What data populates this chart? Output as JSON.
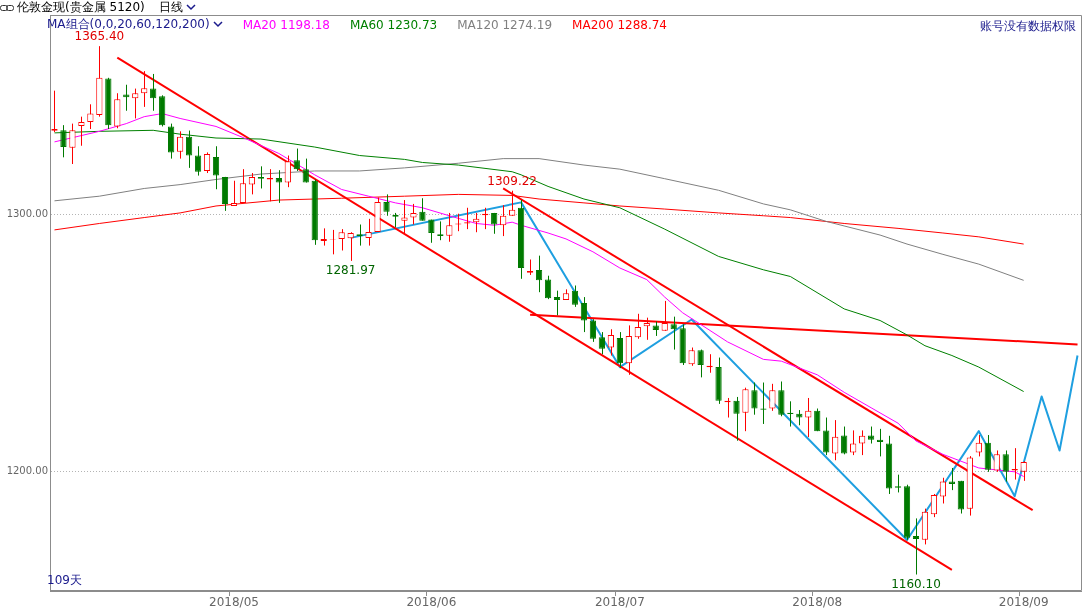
{
  "chart_data": {
    "type": "candlestick",
    "title": "伦敦金现(贵金属 5120)",
    "subtitle": "日线",
    "legend_title": "MA组合(0,0,20,60,120,200)",
    "legend": "top left",
    "grid": "y",
    "categories": [
      null,
      null,
      null,
      null,
      null,
      null,
      null,
      null,
      null,
      null,
      null,
      null,
      null,
      null,
      null,
      null,
      null,
      null,
      null,
      null,
      "2018/05",
      null,
      null,
      null,
      null,
      null,
      null,
      null,
      null,
      null,
      null,
      null,
      null,
      null,
      null,
      null,
      null,
      null,
      null,
      null,
      null,
      null,
      "2018/06",
      null,
      null,
      null,
      null,
      null,
      null,
      null,
      null,
      null,
      null,
      null,
      null,
      null,
      null,
      null,
      null,
      null,
      null,
      null,
      null,
      "2018/07",
      null,
      null,
      null,
      null,
      null,
      null,
      null,
      null,
      null,
      null,
      null,
      null,
      null,
      null,
      null,
      null,
      null,
      null,
      null,
      null,
      null,
      "2018/08",
      null,
      null,
      null,
      null,
      null,
      null,
      null,
      null,
      null,
      null,
      null,
      null,
      null,
      null,
      null,
      null,
      null,
      null,
      null,
      null,
      null,
      null,
      "2018/09",
      null,
      null,
      null,
      null,
      null,
      null
    ],
    "ylim": [
      1153.7,
      1377.5
    ],
    "yticks": [
      {
        "value": 1200,
        "label": "1200.00"
      },
      {
        "value": 1300,
        "label": "1300.00"
      }
    ],
    "ohlc": [
      [
        1332.5,
        1348.1,
        1332.0,
        1333.2
      ],
      [
        1332.7,
        1334.7,
        1322.2,
        1326.2
      ],
      [
        1325.9,
        1335.3,
        1319.6,
        1332.7
      ],
      [
        1334.4,
        1338.0,
        1326.7,
        1335.9
      ],
      [
        1335.9,
        1342.8,
        1333.2,
        1339.2
      ],
      [
        1338.6,
        1365.4,
        1338.0,
        1353.1
      ],
      [
        1352.8,
        1353.1,
        1333.2,
        1334.7
      ],
      [
        1334.2,
        1347.1,
        1333.5,
        1344.8
      ],
      [
        1346.6,
        1350.4,
        1340.3,
        1345.5
      ],
      [
        1345.2,
        1348.9,
        1337.3,
        1347.1
      ],
      [
        1347.1,
        1355.7,
        1341.8,
        1349.0
      ],
      [
        1348.9,
        1354.6,
        1340.3,
        1345.2
      ],
      [
        1345.9,
        1346.3,
        1334.2,
        1334.7
      ],
      [
        1334.2,
        1335.3,
        1321.7,
        1324.1
      ],
      [
        1324.4,
        1332.3,
        1321.7,
        1330.2
      ],
      [
        1330.2,
        1332.6,
        1318.1,
        1322.9
      ],
      [
        1322.9,
        1326.5,
        1315.1,
        1316.6
      ],
      [
        1316.9,
        1324.1,
        1316.1,
        1323.5
      ],
      [
        1322.3,
        1326.5,
        1309.8,
        1315.1
      ],
      [
        1314.6,
        1314.6,
        1301.4,
        1304.1
      ],
      [
        1303.3,
        1313.1,
        1303.3,
        1304.5
      ],
      [
        1304.5,
        1317.6,
        1304.5,
        1312.1
      ],
      [
        1311.6,
        1316.1,
        1307.8,
        1314.6
      ],
      [
        1314.6,
        1318.7,
        1310.1,
        1313.9
      ],
      [
        1313.6,
        1317.6,
        1305.1,
        1314.2
      ],
      [
        1314.2,
        1317.2,
        1304.5,
        1312.4
      ],
      [
        1312.4,
        1322.9,
        1310.6,
        1320.7
      ],
      [
        1321.1,
        1325.6,
        1316.9,
        1317.6
      ],
      [
        1317.6,
        1321.7,
        1312.4,
        1312.4
      ],
      [
        1313.1,
        1313.6,
        1288.2,
        1290.0
      ],
      [
        1289.7,
        1294.6,
        1287.9,
        1290.5
      ],
      [
        1290.3,
        1294.0,
        1284.5,
        1290.5
      ],
      [
        1290.5,
        1294.3,
        1286.0,
        1293.1
      ],
      [
        1290.8,
        1293.1,
        1281.97,
        1292.8
      ],
      [
        1292.3,
        1296.1,
        1287.9,
        1291.6
      ],
      [
        1290.9,
        1298.3,
        1287.9,
        1293.2
      ],
      [
        1293.2,
        1306.6,
        1293.2,
        1304.8
      ],
      [
        1304.8,
        1307.8,
        1299.5,
        1301.1
      ],
      [
        1299.8,
        1300.6,
        1295.0,
        1299.1
      ],
      [
        1297.6,
        1305.6,
        1292.8,
        1298.8
      ],
      [
        1298.8,
        1304.1,
        1296.1,
        1300.6
      ],
      [
        1301.1,
        1306.3,
        1297.6,
        1297.6
      ],
      [
        1298.0,
        1298.0,
        1289.0,
        1292.8
      ],
      [
        1292.3,
        1297.3,
        1290.0,
        1291.6
      ],
      [
        1291.7,
        1300.6,
        1289.4,
        1295.8
      ],
      [
        1296.1,
        1300.3,
        1293.5,
        1296.5
      ],
      [
        1296.5,
        1302.6,
        1294.3,
        1297.0
      ],
      [
        1297.0,
        1300.6,
        1293.1,
        1298.3
      ],
      [
        1299.7,
        1302.6,
        1294.3,
        1300.3
      ],
      [
        1300.6,
        1300.6,
        1292.5,
        1296.1
      ],
      [
        1295.8,
        1303.6,
        1291.6,
        1299.5
      ],
      [
        1299.5,
        1309.22,
        1299.5,
        1301.8
      ],
      [
        1302.6,
        1305.6,
        1275.0,
        1279.2
      ],
      [
        1277.4,
        1282.5,
        1276.5,
        1278.0
      ],
      [
        1278.4,
        1284.0,
        1269.8,
        1274.4
      ],
      [
        1274.7,
        1276.2,
        1267.1,
        1267.4
      ],
      [
        1267.9,
        1270.4,
        1260.8,
        1266.8
      ],
      [
        1266.8,
        1270.9,
        1266.8,
        1269.4
      ],
      [
        1270.4,
        1272.4,
        1264.1,
        1264.9
      ],
      [
        1265.6,
        1267.9,
        1254.3,
        1258.8
      ],
      [
        1258.8,
        1259.3,
        1250.5,
        1251.7
      ],
      [
        1252.3,
        1254.3,
        1245.7,
        1247.8
      ],
      [
        1248.3,
        1255.4,
        1245.2,
        1253.2
      ],
      [
        1252.0,
        1254.3,
        1240.3,
        1242.2
      ],
      [
        1242.2,
        1256.9,
        1237.7,
        1252.8
      ],
      [
        1252.3,
        1261.4,
        1251.7,
        1256.3
      ],
      [
        1256.6,
        1259.9,
        1251.3,
        1257.8
      ],
      [
        1256.9,
        1258.4,
        1252.8,
        1255.1
      ],
      [
        1254.8,
        1266.4,
        1254.8,
        1257.8
      ],
      [
        1257.3,
        1260.3,
        1247.5,
        1255.4
      ],
      [
        1255.8,
        1257.3,
        1241.5,
        1242.2
      ],
      [
        1241.8,
        1248.3,
        1241.2,
        1247.2
      ],
      [
        1247.2,
        1247.5,
        1236.7,
        1241.5
      ],
      [
        1240.6,
        1245.7,
        1238.5,
        1241.2
      ],
      [
        1240.7,
        1244.4,
        1226.4,
        1227.6
      ],
      [
        1227.0,
        1228.7,
        1221.1,
        1227.6
      ],
      [
        1227.6,
        1229.1,
        1212.1,
        1222.6
      ],
      [
        1223.0,
        1232.7,
        1215.8,
        1232.1
      ],
      [
        1231.7,
        1234.7,
        1222.2,
        1224.6
      ],
      [
        1224.6,
        1234.7,
        1218.6,
        1224.1
      ],
      [
        1224.6,
        1234.2,
        1223.7,
        1231.7
      ],
      [
        1231.7,
        1235.1,
        1221.6,
        1222.2
      ],
      [
        1223.0,
        1227.4,
        1217.6,
        1222.5
      ],
      [
        1222.6,
        1224.0,
        1218.1,
        1221.1
      ],
      [
        1221.1,
        1228.7,
        1213.5,
        1223.7
      ],
      [
        1223.7,
        1224.6,
        1215.8,
        1215.8
      ],
      [
        1216.1,
        1221.1,
        1206.5,
        1207.5
      ],
      [
        1207.1,
        1220.1,
        1204.5,
        1213.6
      ],
      [
        1214.1,
        1217.6,
        1206.8,
        1207.1
      ],
      [
        1207.5,
        1216.1,
        1206.5,
        1211.0
      ],
      [
        1211.0,
        1216.1,
        1206.5,
        1214.0
      ],
      [
        1214.1,
        1217.6,
        1211.0,
        1212.5
      ],
      [
        1212.5,
        1216.7,
        1206.0,
        1211.6
      ],
      [
        1211.0,
        1214.0,
        1191.4,
        1193.5
      ],
      [
        1194.4,
        1198.9,
        1192.0,
        1193.8
      ],
      [
        1194.4,
        1195.0,
        1173.6,
        1174.4
      ],
      [
        1175.1,
        1181.9,
        1160.1,
        1173.9
      ],
      [
        1173.6,
        1185.7,
        1171.8,
        1184.5
      ],
      [
        1183.5,
        1191.4,
        1182.4,
        1191.0
      ],
      [
        1190.4,
        1197.7,
        1187.7,
        1196.2
      ],
      [
        1196.2,
        1201.5,
        1192.9,
        1195.3
      ],
      [
        1196.5,
        1196.5,
        1183.8,
        1185.4
      ],
      [
        1185.7,
        1206.1,
        1183.0,
        1205.6
      ],
      [
        1207.5,
        1214.3,
        1206.0,
        1211.3
      ],
      [
        1211.3,
        1214.3,
        1200.0,
        1200.8
      ],
      [
        1200.5,
        1208.3,
        1200.0,
        1206.8
      ],
      [
        1206.8,
        1208.3,
        1196.2,
        1200.0
      ],
      [
        1200.5,
        1209.2,
        1197.0,
        1201.1
      ],
      [
        1200.0,
        1204.1,
        1196.5,
        1203.8
      ],
      null,
      null,
      null,
      null,
      null,
      null
    ],
    "series": [
      {
        "type": "line",
        "name": "MA20 1198.18",
        "color": "#ff00ff",
        "values": [
          1328.2,
          null,
          null,
          null,
          null,
          1332.3,
          null,
          null,
          1335.3,
          null,
          1338.0,
          null,
          1339.2,
          null,
          1337.3,
          null,
          null,
          null,
          1334.2,
          null,
          null,
          1329.9,
          null,
          null,
          null,
          1323.7,
          null,
          null,
          null,
          1315.4,
          null,
          null,
          1309.7,
          null,
          null,
          1307.1,
          null,
          null,
          1304.5,
          null,
          null,
          1302.6,
          null,
          null,
          1299.5,
          null,
          null,
          1296.5,
          null,
          1295.8,
          null,
          1297.0,
          1295.8,
          null,
          null,
          1292.8,
          null,
          1290.5,
          null,
          null,
          1285.5,
          null,
          null,
          1279.2,
          null,
          null,
          1274.7,
          null,
          1267.9,
          null,
          1261.8,
          null,
          1257.3,
          null,
          null,
          1250.5,
          null,
          null,
          null,
          1243.7,
          null,
          1243.0,
          null,
          null,
          null,
          1237.7,
          null,
          null,
          1230.9,
          null,
          null,
          1224.9,
          null,
          null,
          1218.9,
          null,
          1212.0,
          null,
          null,
          1206.8,
          null,
          null,
          null,
          1201.5,
          null,
          null,
          null,
          1200.0,
          1198.2,
          null,
          null,
          null,
          null,
          null,
          null
        ]
      },
      {
        "type": "line",
        "name": "MA60 1230.73",
        "color": "#008000",
        "values": [
          1331.7,
          null,
          null,
          null,
          null,
          1332.3,
          null,
          null,
          null,
          null,
          null,
          1332.7,
          null,
          null,
          1331.2,
          null,
          null,
          null,
          1329.7,
          null,
          null,
          null,
          null,
          1329.3,
          null,
          null,
          null,
          null,
          null,
          1326.2,
          null,
          null,
          null,
          null,
          1322.9,
          null,
          null,
          null,
          null,
          1321.4,
          null,
          1320.2,
          null,
          null,
          null,
          1319.2,
          null,
          null,
          null,
          null,
          null,
          1316.6,
          1315.4,
          null,
          null,
          1310.9,
          null,
          null,
          null,
          1306.0,
          null,
          null,
          null,
          1302.6,
          null,
          null,
          null,
          null,
          1294.3,
          null,
          null,
          null,
          null,
          null,
          1283.7,
          null,
          null,
          null,
          null,
          1278.5,
          null,
          null,
          1275.9,
          null,
          null,
          null,
          null,
          null,
          1263.3,
          null,
          null,
          null,
          1258.8,
          null,
          null,
          1253.2,
          null,
          1249.0,
          null,
          null,
          1245.2,
          null,
          null,
          1240.7,
          null,
          null,
          null,
          null,
          1231.2,
          null,
          null,
          null,
          null,
          null,
          null
        ]
      },
      {
        "type": "line",
        "name": "MA120 1274.19",
        "color": "#808080",
        "values": [
          1305.3,
          null,
          null,
          null,
          null,
          1307.1,
          null,
          null,
          null,
          null,
          1310.1,
          null,
          null,
          null,
          1311.6,
          null,
          null,
          null,
          1313.6,
          null,
          null,
          null,
          null,
          1315.7,
          null,
          null,
          null,
          null,
          null,
          1316.9,
          null,
          null,
          null,
          null,
          1316.9,
          null,
          null,
          null,
          null,
          1318.1,
          null,
          null,
          null,
          null,
          null,
          1319.9,
          null,
          null,
          null,
          null,
          1321.7,
          null,
          null,
          null,
          1321.7,
          null,
          null,
          null,
          null,
          1319.2,
          null,
          null,
          null,
          1317.6,
          null,
          null,
          null,
          null,
          1313.9,
          null,
          null,
          null,
          null,
          null,
          1309.4,
          null,
          null,
          null,
          null,
          1304.1,
          null,
          null,
          1301.8,
          null,
          null,
          null,
          1297.3,
          null,
          null,
          null,
          null,
          null,
          1292.0,
          null,
          null,
          1288.5,
          null,
          null,
          null,
          1284.5,
          null,
          null,
          null,
          1280.7,
          null,
          null,
          null,
          null,
          1274.4,
          null,
          null,
          null,
          null,
          null,
          null
        ]
      },
      {
        "type": "line",
        "name": "MA200 1288.74",
        "color": "#ff0000",
        "values": [
          1294.0,
          null,
          null,
          null,
          null,
          1296.5,
          null,
          null,
          null,
          null,
          1298.8,
          null,
          null,
          null,
          1300.6,
          null,
          null,
          null,
          1303.3,
          null,
          null,
          null,
          null,
          null,
          null,
          1305.6,
          null,
          null,
          null,
          null,
          null,
          null,
          1306.3,
          null,
          null,
          null,
          null,
          null,
          null,
          1307.1,
          null,
          null,
          null,
          null,
          null,
          1307.8,
          null,
          null,
          null,
          null,
          null,
          1307.4,
          null,
          null,
          1306.0,
          null,
          null,
          null,
          null,
          1304.5,
          null,
          null,
          null,
          1303.3,
          null,
          null,
          null,
          null,
          1302.1,
          null,
          null,
          null,
          null,
          null,
          1300.6,
          null,
          null,
          null,
          null,
          1299.5,
          null,
          null,
          1298.8,
          null,
          null,
          null,
          null,
          null,
          1296.5,
          null,
          null,
          null,
          null,
          null,
          1294.6,
          null,
          null,
          null,
          null,
          1292.8,
          null,
          null,
          null,
          1291.3,
          null,
          null,
          null,
          null,
          1288.5,
          null,
          null,
          null,
          null,
          null,
          null
        ]
      },
      {
        "type": "line",
        "color": "#ff0000",
        "values": [
          null,
          null,
          null,
          null,
          null,
          null,
          null,
          1360.9,
          null,
          null,
          null,
          null,
          null,
          null,
          null,
          null,
          null,
          null,
          null,
          null,
          null,
          null,
          null,
          null,
          null,
          null,
          null,
          null,
          null,
          null,
          null,
          null,
          null,
          null,
          null,
          null,
          null,
          null,
          null,
          null,
          null,
          null,
          null,
          null,
          null,
          null,
          null,
          null,
          null,
          null,
          null,
          null,
          null,
          null,
          null,
          null,
          null,
          null,
          null,
          null,
          null,
          null,
          null,
          null,
          null,
          null,
          null,
          null,
          null,
          null,
          null,
          null,
          null,
          null,
          null,
          null,
          null,
          null,
          null,
          null,
          null,
          null,
          null,
          null,
          null,
          null,
          null,
          null,
          null,
          null,
          null,
          null,
          null,
          null,
          null,
          null,
          null,
          null,
          null,
          null,
          1161.9,
          null,
          null,
          null,
          null,
          null,
          null,
          null,
          null,
          null,
          null,
          null,
          null,
          null,
          null
        ]
      },
      {
        "type": "line",
        "color": "#ff0000",
        "values": [
          null,
          null,
          null,
          null,
          null,
          null,
          null,
          null,
          null,
          null,
          null,
          null,
          null,
          null,
          null,
          null,
          null,
          null,
          null,
          null,
          null,
          null,
          null,
          null,
          null,
          null,
          null,
          null,
          null,
          null,
          null,
          null,
          null,
          null,
          null,
          null,
          null,
          null,
          null,
          null,
          null,
          null,
          null,
          null,
          null,
          null,
          null,
          null,
          null,
          null,
          1310.1,
          null,
          null,
          null,
          null,
          null,
          null,
          null,
          null,
          null,
          null,
          null,
          null,
          null,
          null,
          null,
          null,
          null,
          null,
          null,
          null,
          null,
          null,
          null,
          null,
          null,
          null,
          null,
          null,
          null,
          null,
          null,
          null,
          null,
          null,
          null,
          null,
          null,
          null,
          null,
          null,
          null,
          null,
          null,
          null,
          null,
          null,
          null,
          null,
          null,
          null,
          null,
          null,
          null,
          null,
          null,
          null,
          null,
          null,
          1185.1,
          null,
          null,
          null,
          null,
          null
        ]
      },
      {
        "type": "line",
        "color": "#ff0000",
        "values": [
          null,
          null,
          null,
          null,
          null,
          null,
          null,
          null,
          null,
          null,
          null,
          null,
          null,
          null,
          null,
          null,
          null,
          null,
          null,
          null,
          null,
          null,
          null,
          null,
          null,
          null,
          null,
          null,
          null,
          null,
          null,
          null,
          null,
          null,
          null,
          null,
          null,
          null,
          null,
          null,
          null,
          null,
          null,
          null,
          null,
          null,
          null,
          null,
          null,
          null,
          null,
          null,
          null,
          1261.0,
          null,
          null,
          null,
          null,
          null,
          null,
          null,
          null,
          null,
          null,
          null,
          null,
          null,
          null,
          null,
          null,
          null,
          null,
          null,
          null,
          null,
          null,
          null,
          null,
          null,
          null,
          null,
          null,
          null,
          null,
          null,
          null,
          null,
          null,
          null,
          null,
          null,
          null,
          null,
          null,
          null,
          null,
          null,
          null,
          null,
          null,
          null,
          null,
          null,
          null,
          null,
          null,
          null,
          null,
          null,
          null,
          null,
          null,
          null,
          null,
          1249.5
        ]
      },
      {
        "type": "line",
        "color": "#1e9fe0",
        "values": [
          null,
          null,
          null,
          null,
          null,
          null,
          null,
          null,
          null,
          null,
          null,
          null,
          null,
          null,
          null,
          null,
          null,
          null,
          null,
          null,
          null,
          null,
          null,
          null,
          null,
          null,
          null,
          null,
          null,
          null,
          null,
          null,
          null,
          1290.9,
          null,
          null,
          null,
          null,
          null,
          null,
          null,
          null,
          null,
          null,
          null,
          null,
          null,
          null,
          null,
          null,
          null,
          null,
          1304.7,
          null,
          null,
          null,
          null,
          null,
          null,
          null,
          null,
          null,
          null,
          1240.7,
          null,
          null,
          null,
          null,
          null,
          null,
          null,
          1259.2,
          null,
          null,
          null,
          null,
          null,
          null,
          null,
          null,
          null,
          null,
          null,
          null,
          null,
          null,
          null,
          null,
          null,
          null,
          null,
          null,
          null,
          null,
          null,
          1173.5,
          null,
          null,
          null,
          null,
          null,
          null,
          null,
          1215.8,
          null,
          null,
          null,
          1190.5,
          null,
          null,
          1229.3,
          null,
          1208.3,
          null,
          1245.2
        ]
      }
    ],
    "annotations": [
      {
        "text": "1365.40",
        "y": 1365.4
      },
      {
        "text": "1309.22",
        "y": 1309.22
      },
      {
        "text": "1281.97",
        "y": 1281.97
      },
      {
        "text": "1160.10",
        "y": 1160.1
      },
      "109天",
      "账号没有数据权限"
    ]
  }
}
